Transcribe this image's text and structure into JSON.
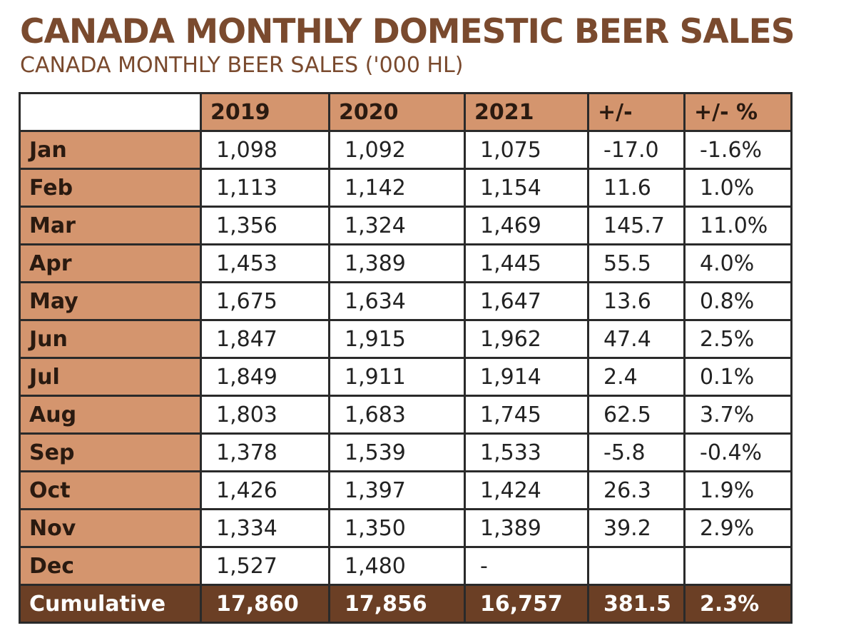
{
  "title": "CANADA MONTHLY DOMESTIC BEER SALES",
  "subtitle": "CANADA MONTHLY BEER SALES ('000 HL)",
  "colors": {
    "heading": "#7a4a2e",
    "header_fill": "#d4956e",
    "total_fill": "#6b3f25",
    "border": "#2a2a2a"
  },
  "chart_data": {
    "type": "table",
    "title": "CANADA MONTHLY DOMESTIC BEER SALES",
    "subtitle": "CANADA MONTHLY BEER SALES ('000 HL)",
    "columns": [
      "",
      "2019",
      "2020",
      "2021",
      "+/-",
      "+/- %"
    ],
    "rows": [
      [
        "Jan",
        "1,098",
        "1,092",
        "1,075",
        "-17.0",
        "-1.6%"
      ],
      [
        "Feb",
        "1,113",
        "1,142",
        "1,154",
        "11.6",
        "1.0%"
      ],
      [
        "Mar",
        "1,356",
        "1,324",
        "1,469",
        "145.7",
        "11.0%"
      ],
      [
        "Apr",
        "1,453",
        "1,389",
        "1,445",
        "55.5",
        "4.0%"
      ],
      [
        "May",
        "1,675",
        "1,634",
        "1,647",
        "13.6",
        "0.8%"
      ],
      [
        "Jun",
        "1,847",
        "1,915",
        "1,962",
        "47.4",
        "2.5%"
      ],
      [
        "Jul",
        "1,849",
        "1,911",
        "1,914",
        "2.4",
        "0.1%"
      ],
      [
        "Aug",
        "1,803",
        "1,683",
        "1,745",
        "62.5",
        "3.7%"
      ],
      [
        "Sep",
        "1,378",
        "1,539",
        "1,533",
        "-5.8",
        "-0.4%"
      ],
      [
        "Oct",
        "1,426",
        "1,397",
        "1,424",
        "26.3",
        "1.9%"
      ],
      [
        "Nov",
        "1,334",
        "1,350",
        "1,389",
        "39.2",
        "2.9%"
      ],
      [
        "Dec",
        "1,527",
        "1,480",
        "-",
        "",
        ""
      ]
    ],
    "total_row": [
      "Cumulative",
      "17,860",
      "17,856",
      "16,757",
      "381.5",
      "2.3%"
    ]
  }
}
